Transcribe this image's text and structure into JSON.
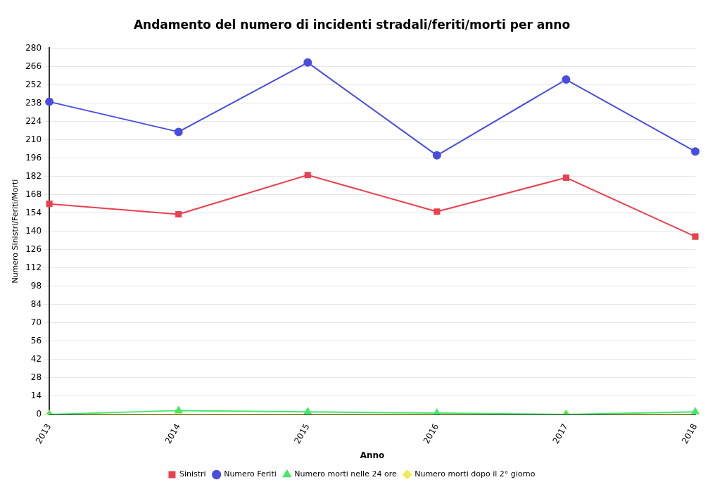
{
  "chart_data": {
    "type": "line",
    "title": "Andamento del numero di incidenti stradali/feriti/morti per anno",
    "xlabel": "Anno",
    "ylabel": "Numero Sinistri/Feriti/Morti",
    "categories": [
      "2013",
      "2014",
      "2015",
      "2016",
      "2017",
      "2018"
    ],
    "series": [
      {
        "name": "Sinistri",
        "color": "#e8414f",
        "marker": "square",
        "values": [
          161,
          153,
          183,
          155,
          181,
          136
        ]
      },
      {
        "name": "Numero Feriti",
        "color": "#4a4ee0",
        "marker": "circle",
        "values": [
          239,
          216,
          269,
          198,
          256,
          201
        ]
      },
      {
        "name": "Numero morti nelle 24 ore",
        "color": "#44e86a",
        "marker": "triangle",
        "values": [
          0,
          3,
          2,
          1,
          0,
          2
        ]
      },
      {
        "name": "Numero morti dopo il 2° giorno",
        "color": "#f0ec50",
        "marker": "diamond",
        "values": [
          0,
          0,
          0,
          0,
          0,
          0
        ]
      }
    ],
    "ylim": [
      0,
      280
    ],
    "yticks": [
      0,
      14,
      28,
      42,
      56,
      70,
      84,
      98,
      112,
      126,
      140,
      154,
      168,
      182,
      196,
      210,
      224,
      238,
      252,
      266,
      280
    ],
    "grid": "y",
    "legend": "bottom"
  }
}
